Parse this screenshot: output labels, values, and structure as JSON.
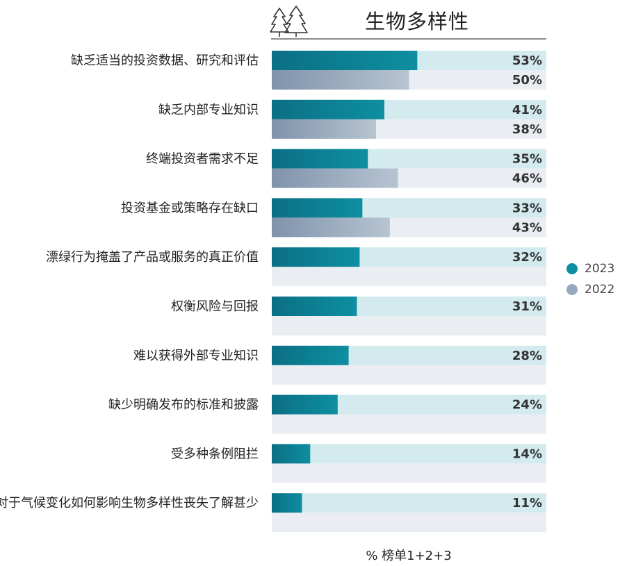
{
  "chart_data": {
    "type": "bar",
    "title": "生物多样性",
    "xlabel": "% 榜单1+2+3",
    "xlim": [
      0,
      100
    ],
    "categories": [
      "缺乏适当的投资数据、研究和评估",
      "缺乏内部专业知识",
      "终端投资者需求不足",
      "投资基金或策略存在缺口",
      "漂绿行为掩盖了产品或服务的真正价值",
      "权衡风险与回报",
      "难以获得外部专业知识",
      "缺少明确发布的标准和披露",
      "受多种条例阻拦",
      "对于气候变化如何影响生物多样性丧失了解甚少"
    ],
    "series": [
      {
        "name": "2023",
        "values": [
          53,
          41,
          35,
          33,
          32,
          31,
          28,
          24,
          14,
          11
        ],
        "color": "#0e8fa1",
        "track_color": "#d3ebee"
      },
      {
        "name": "2022",
        "values": [
          50,
          38,
          46,
          43,
          null,
          null,
          null,
          null,
          null,
          null
        ],
        "color": "#95a8bd",
        "track_color": "#eaeef3"
      }
    ],
    "value_labels_2023": [
      "53%",
      "41%",
      "35%",
      "33%",
      "32%",
      "31%",
      "28%",
      "24%",
      "14%",
      "11%"
    ],
    "value_labels_2022": [
      "50%",
      "38%",
      "46%",
      "43%",
      "",
      "",
      "",
      "",
      "",
      ""
    ],
    "legend": {
      "position": "right",
      "entries": [
        "2023",
        "2022"
      ]
    },
    "icon": "pine-trees-icon"
  }
}
